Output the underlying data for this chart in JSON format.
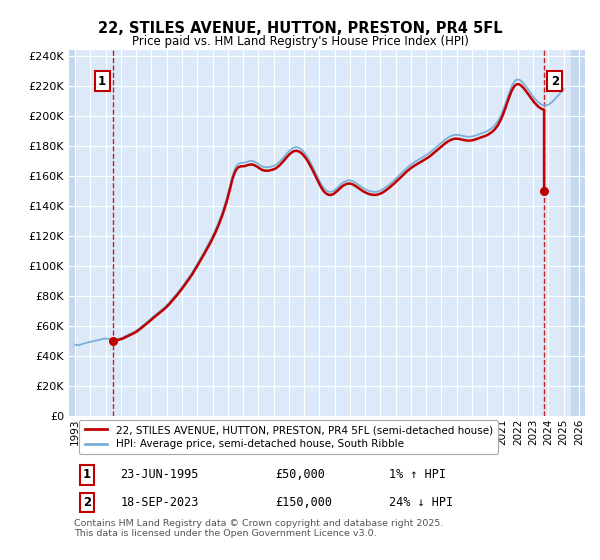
{
  "title": "22, STILES AVENUE, HUTTON, PRESTON, PR4 5FL",
  "subtitle": "Price paid vs. HM Land Registry's House Price Index (HPI)",
  "ylim": [
    0,
    244000
  ],
  "yticks": [
    0,
    20000,
    40000,
    60000,
    80000,
    100000,
    120000,
    140000,
    160000,
    180000,
    200000,
    220000,
    240000
  ],
  "plot_bg_color": "#dce9f8",
  "hatch_color": "#c5d8ee",
  "grid_color": "#ffffff",
  "hpi_line_color": "#7ab0d8",
  "price_line_color": "#c00000",
  "sale1_date": 1995.47,
  "sale1_price": 50000,
  "sale2_date": 2023.72,
  "sale2_price": 150000,
  "legend_label1": "22, STILES AVENUE, HUTTON, PRESTON, PR4 5FL (semi-detached house)",
  "legend_label2": "HPI: Average price, semi-detached house, South Ribble",
  "footnote": "Contains HM Land Registry data © Crown copyright and database right 2025.\nThis data is licensed under the Open Government Licence v3.0.",
  "hpi_data": [
    [
      1993.0,
      47500
    ],
    [
      1993.08,
      47200
    ],
    [
      1993.17,
      47000
    ],
    [
      1993.25,
      47100
    ],
    [
      1993.33,
      47300
    ],
    [
      1993.42,
      47600
    ],
    [
      1993.5,
      47900
    ],
    [
      1993.58,
      48100
    ],
    [
      1993.67,
      48400
    ],
    [
      1993.75,
      48600
    ],
    [
      1993.83,
      48900
    ],
    [
      1993.92,
      49100
    ],
    [
      1994.0,
      49300
    ],
    [
      1994.08,
      49500
    ],
    [
      1994.17,
      49600
    ],
    [
      1994.25,
      49800
    ],
    [
      1994.33,
      50000
    ],
    [
      1994.42,
      50200
    ],
    [
      1994.5,
      50400
    ],
    [
      1994.58,
      50600
    ],
    [
      1994.67,
      50800
    ],
    [
      1994.75,
      51000
    ],
    [
      1994.83,
      51200
    ],
    [
      1994.92,
      51400
    ],
    [
      1995.0,
      51500
    ],
    [
      1995.08,
      51400
    ],
    [
      1995.17,
      51300
    ],
    [
      1995.25,
      51100
    ],
    [
      1995.33,
      51000
    ],
    [
      1995.42,
      50900
    ],
    [
      1995.47,
      50700
    ],
    [
      1995.5,
      50800
    ],
    [
      1995.58,
      50900
    ],
    [
      1995.67,
      51000
    ],
    [
      1995.75,
      51100
    ],
    [
      1995.83,
      51300
    ],
    [
      1995.92,
      51500
    ],
    [
      1996.0,
      51700
    ],
    [
      1996.08,
      52000
    ],
    [
      1996.17,
      52400
    ],
    [
      1996.25,
      52800
    ],
    [
      1996.33,
      53300
    ],
    [
      1996.42,
      53700
    ],
    [
      1996.5,
      54100
    ],
    [
      1996.58,
      54500
    ],
    [
      1996.67,
      54900
    ],
    [
      1996.75,
      55300
    ],
    [
      1996.83,
      55700
    ],
    [
      1996.92,
      56200
    ],
    [
      1997.0,
      56700
    ],
    [
      1997.08,
      57300
    ],
    [
      1997.17,
      57900
    ],
    [
      1997.25,
      58600
    ],
    [
      1997.33,
      59300
    ],
    [
      1997.42,
      60000
    ],
    [
      1997.5,
      60700
    ],
    [
      1997.58,
      61400
    ],
    [
      1997.67,
      62100
    ],
    [
      1997.75,
      62800
    ],
    [
      1997.83,
      63500
    ],
    [
      1997.92,
      64200
    ],
    [
      1998.0,
      65000
    ],
    [
      1998.08,
      65800
    ],
    [
      1998.17,
      66500
    ],
    [
      1998.25,
      67200
    ],
    [
      1998.33,
      67900
    ],
    [
      1998.42,
      68600
    ],
    [
      1998.5,
      69300
    ],
    [
      1998.58,
      70000
    ],
    [
      1998.67,
      70700
    ],
    [
      1998.75,
      71400
    ],
    [
      1998.83,
      72100
    ],
    [
      1998.92,
      72900
    ],
    [
      1999.0,
      73700
    ],
    [
      1999.08,
      74600
    ],
    [
      1999.17,
      75500
    ],
    [
      1999.25,
      76500
    ],
    [
      1999.33,
      77500
    ],
    [
      1999.42,
      78500
    ],
    [
      1999.5,
      79500
    ],
    [
      1999.58,
      80500
    ],
    [
      1999.67,
      81500
    ],
    [
      1999.75,
      82600
    ],
    [
      1999.83,
      83700
    ],
    [
      1999.92,
      84800
    ],
    [
      2000.0,
      85900
    ],
    [
      2000.08,
      87100
    ],
    [
      2000.17,
      88300
    ],
    [
      2000.25,
      89500
    ],
    [
      2000.33,
      90700
    ],
    [
      2000.42,
      91900
    ],
    [
      2000.5,
      93100
    ],
    [
      2000.58,
      94400
    ],
    [
      2000.67,
      95700
    ],
    [
      2000.75,
      97100
    ],
    [
      2000.83,
      98500
    ],
    [
      2000.92,
      99900
    ],
    [
      2001.0,
      101300
    ],
    [
      2001.08,
      102800
    ],
    [
      2001.17,
      104300
    ],
    [
      2001.25,
      105800
    ],
    [
      2001.33,
      107300
    ],
    [
      2001.42,
      108800
    ],
    [
      2001.5,
      110300
    ],
    [
      2001.58,
      111800
    ],
    [
      2001.67,
      113400
    ],
    [
      2001.75,
      115000
    ],
    [
      2001.83,
      116600
    ],
    [
      2001.92,
      118200
    ],
    [
      2002.0,
      119900
    ],
    [
      2002.08,
      121700
    ],
    [
      2002.17,
      123600
    ],
    [
      2002.25,
      125500
    ],
    [
      2002.33,
      127500
    ],
    [
      2002.42,
      129600
    ],
    [
      2002.5,
      131800
    ],
    [
      2002.58,
      134100
    ],
    [
      2002.67,
      136500
    ],
    [
      2002.75,
      139000
    ],
    [
      2002.83,
      141700
    ],
    [
      2002.92,
      144600
    ],
    [
      2003.0,
      147700
    ],
    [
      2003.08,
      151000
    ],
    [
      2003.17,
      154500
    ],
    [
      2003.25,
      158000
    ],
    [
      2003.33,
      161000
    ],
    [
      2003.42,
      163500
    ],
    [
      2003.5,
      165500
    ],
    [
      2003.58,
      167000
    ],
    [
      2003.67,
      168000
    ],
    [
      2003.75,
      168500
    ],
    [
      2003.83,
      168800
    ],
    [
      2003.92,
      168900
    ],
    [
      2004.0,
      168900
    ],
    [
      2004.08,
      169000
    ],
    [
      2004.17,
      169200
    ],
    [
      2004.25,
      169500
    ],
    [
      2004.33,
      169800
    ],
    [
      2004.42,
      170000
    ],
    [
      2004.5,
      170100
    ],
    [
      2004.58,
      170100
    ],
    [
      2004.67,
      169900
    ],
    [
      2004.75,
      169600
    ],
    [
      2004.83,
      169200
    ],
    [
      2004.92,
      168700
    ],
    [
      2005.0,
      168100
    ],
    [
      2005.08,
      167500
    ],
    [
      2005.17,
      167000
    ],
    [
      2005.25,
      166500
    ],
    [
      2005.33,
      166200
    ],
    [
      2005.42,
      166000
    ],
    [
      2005.5,
      165900
    ],
    [
      2005.58,
      165900
    ],
    [
      2005.67,
      166000
    ],
    [
      2005.75,
      166100
    ],
    [
      2005.83,
      166300
    ],
    [
      2005.92,
      166500
    ],
    [
      2006.0,
      166800
    ],
    [
      2006.08,
      167200
    ],
    [
      2006.17,
      167700
    ],
    [
      2006.25,
      168300
    ],
    [
      2006.33,
      169000
    ],
    [
      2006.42,
      169800
    ],
    [
      2006.5,
      170700
    ],
    [
      2006.58,
      171700
    ],
    [
      2006.67,
      172700
    ],
    [
      2006.75,
      173700
    ],
    [
      2006.83,
      174700
    ],
    [
      2006.92,
      175700
    ],
    [
      2007.0,
      176600
    ],
    [
      2007.08,
      177400
    ],
    [
      2007.17,
      178100
    ],
    [
      2007.25,
      178700
    ],
    [
      2007.33,
      179100
    ],
    [
      2007.42,
      179300
    ],
    [
      2007.5,
      179400
    ],
    [
      2007.58,
      179200
    ],
    [
      2007.67,
      178900
    ],
    [
      2007.75,
      178400
    ],
    [
      2007.83,
      177700
    ],
    [
      2007.92,
      176900
    ],
    [
      2008.0,
      175900
    ],
    [
      2008.08,
      174800
    ],
    [
      2008.17,
      173500
    ],
    [
      2008.25,
      172200
    ],
    [
      2008.33,
      170700
    ],
    [
      2008.42,
      169100
    ],
    [
      2008.5,
      167500
    ],
    [
      2008.58,
      165800
    ],
    [
      2008.67,
      164000
    ],
    [
      2008.75,
      162200
    ],
    [
      2008.83,
      160400
    ],
    [
      2008.92,
      158600
    ],
    [
      2009.0,
      156900
    ],
    [
      2009.08,
      155300
    ],
    [
      2009.17,
      153800
    ],
    [
      2009.25,
      152500
    ],
    [
      2009.33,
      151500
    ],
    [
      2009.42,
      150700
    ],
    [
      2009.5,
      150100
    ],
    [
      2009.58,
      149700
    ],
    [
      2009.67,
      149500
    ],
    [
      2009.75,
      149500
    ],
    [
      2009.83,
      149700
    ],
    [
      2009.92,
      150100
    ],
    [
      2010.0,
      150700
    ],
    [
      2010.08,
      151400
    ],
    [
      2010.17,
      152200
    ],
    [
      2010.25,
      153000
    ],
    [
      2010.33,
      153800
    ],
    [
      2010.42,
      154600
    ],
    [
      2010.5,
      155300
    ],
    [
      2010.58,
      155900
    ],
    [
      2010.67,
      156400
    ],
    [
      2010.75,
      156800
    ],
    [
      2010.83,
      157100
    ],
    [
      2010.92,
      157200
    ],
    [
      2011.0,
      157200
    ],
    [
      2011.08,
      157000
    ],
    [
      2011.17,
      156700
    ],
    [
      2011.25,
      156300
    ],
    [
      2011.33,
      155800
    ],
    [
      2011.42,
      155200
    ],
    [
      2011.5,
      154600
    ],
    [
      2011.58,
      154000
    ],
    [
      2011.67,
      153400
    ],
    [
      2011.75,
      152800
    ],
    [
      2011.83,
      152200
    ],
    [
      2011.92,
      151700
    ],
    [
      2012.0,
      151200
    ],
    [
      2012.08,
      150800
    ],
    [
      2012.17,
      150400
    ],
    [
      2012.25,
      150100
    ],
    [
      2012.33,
      149900
    ],
    [
      2012.42,
      149700
    ],
    [
      2012.5,
      149600
    ],
    [
      2012.58,
      149500
    ],
    [
      2012.67,
      149500
    ],
    [
      2012.75,
      149600
    ],
    [
      2012.83,
      149800
    ],
    [
      2012.92,
      150100
    ],
    [
      2013.0,
      150400
    ],
    [
      2013.08,
      150800
    ],
    [
      2013.17,
      151300
    ],
    [
      2013.25,
      151800
    ],
    [
      2013.33,
      152400
    ],
    [
      2013.42,
      153000
    ],
    [
      2013.5,
      153700
    ],
    [
      2013.58,
      154400
    ],
    [
      2013.67,
      155100
    ],
    [
      2013.75,
      155800
    ],
    [
      2013.83,
      156600
    ],
    [
      2013.92,
      157400
    ],
    [
      2014.0,
      158200
    ],
    [
      2014.08,
      159000
    ],
    [
      2014.17,
      159900
    ],
    [
      2014.25,
      160700
    ],
    [
      2014.33,
      161600
    ],
    [
      2014.42,
      162400
    ],
    [
      2014.5,
      163200
    ],
    [
      2014.58,
      164000
    ],
    [
      2014.67,
      164800
    ],
    [
      2014.75,
      165600
    ],
    [
      2014.83,
      166300
    ],
    [
      2014.92,
      167000
    ],
    [
      2015.0,
      167700
    ],
    [
      2015.08,
      168300
    ],
    [
      2015.17,
      168900
    ],
    [
      2015.25,
      169500
    ],
    [
      2015.33,
      170000
    ],
    [
      2015.42,
      170500
    ],
    [
      2015.5,
      171000
    ],
    [
      2015.58,
      171500
    ],
    [
      2015.67,
      172000
    ],
    [
      2015.75,
      172500
    ],
    [
      2015.83,
      173000
    ],
    [
      2015.92,
      173500
    ],
    [
      2016.0,
      174000
    ],
    [
      2016.08,
      174600
    ],
    [
      2016.17,
      175200
    ],
    [
      2016.25,
      175800
    ],
    [
      2016.33,
      176500
    ],
    [
      2016.42,
      177200
    ],
    [
      2016.5,
      177900
    ],
    [
      2016.58,
      178600
    ],
    [
      2016.67,
      179400
    ],
    [
      2016.75,
      180100
    ],
    [
      2016.83,
      180900
    ],
    [
      2016.92,
      181600
    ],
    [
      2017.0,
      182400
    ],
    [
      2017.08,
      183100
    ],
    [
      2017.17,
      183800
    ],
    [
      2017.25,
      184500
    ],
    [
      2017.33,
      185100
    ],
    [
      2017.42,
      185700
    ],
    [
      2017.5,
      186200
    ],
    [
      2017.58,
      186600
    ],
    [
      2017.67,
      187000
    ],
    [
      2017.75,
      187300
    ],
    [
      2017.83,
      187500
    ],
    [
      2017.92,
      187600
    ],
    [
      2018.0,
      187600
    ],
    [
      2018.08,
      187500
    ],
    [
      2018.17,
      187400
    ],
    [
      2018.25,
      187200
    ],
    [
      2018.33,
      187000
    ],
    [
      2018.42,
      186800
    ],
    [
      2018.5,
      186600
    ],
    [
      2018.58,
      186500
    ],
    [
      2018.67,
      186400
    ],
    [
      2018.75,
      186300
    ],
    [
      2018.83,
      186300
    ],
    [
      2018.92,
      186400
    ],
    [
      2019.0,
      186500
    ],
    [
      2019.08,
      186700
    ],
    [
      2019.17,
      186900
    ],
    [
      2019.25,
      187200
    ],
    [
      2019.33,
      187500
    ],
    [
      2019.42,
      187800
    ],
    [
      2019.5,
      188100
    ],
    [
      2019.58,
      188400
    ],
    [
      2019.67,
      188700
    ],
    [
      2019.75,
      189000
    ],
    [
      2019.83,
      189300
    ],
    [
      2019.92,
      189700
    ],
    [
      2020.0,
      190100
    ],
    [
      2020.08,
      190600
    ],
    [
      2020.17,
      191100
    ],
    [
      2020.25,
      191700
    ],
    [
      2020.33,
      192400
    ],
    [
      2020.42,
      193200
    ],
    [
      2020.5,
      194100
    ],
    [
      2020.58,
      195200
    ],
    [
      2020.67,
      196400
    ],
    [
      2020.75,
      197800
    ],
    [
      2020.83,
      199400
    ],
    [
      2020.92,
      201200
    ],
    [
      2021.0,
      203200
    ],
    [
      2021.08,
      205400
    ],
    [
      2021.17,
      207800
    ],
    [
      2021.25,
      210300
    ],
    [
      2021.33,
      212800
    ],
    [
      2021.42,
      215200
    ],
    [
      2021.5,
      217500
    ],
    [
      2021.58,
      219600
    ],
    [
      2021.67,
      221400
    ],
    [
      2021.75,
      222800
    ],
    [
      2021.83,
      223800
    ],
    [
      2021.92,
      224400
    ],
    [
      2022.0,
      224600
    ],
    [
      2022.08,
      224400
    ],
    [
      2022.17,
      224000
    ],
    [
      2022.25,
      223300
    ],
    [
      2022.33,
      222400
    ],
    [
      2022.42,
      221400
    ],
    [
      2022.5,
      220300
    ],
    [
      2022.58,
      219200
    ],
    [
      2022.67,
      218000
    ],
    [
      2022.75,
      216800
    ],
    [
      2022.83,
      215600
    ],
    [
      2022.92,
      214400
    ],
    [
      2023.0,
      213200
    ],
    [
      2023.08,
      212100
    ],
    [
      2023.17,
      211100
    ],
    [
      2023.25,
      210200
    ],
    [
      2023.33,
      209400
    ],
    [
      2023.42,
      208700
    ],
    [
      2023.5,
      208100
    ],
    [
      2023.58,
      207700
    ],
    [
      2023.67,
      207400
    ],
    [
      2023.72,
      207200
    ],
    [
      2023.75,
      207200
    ],
    [
      2023.83,
      207300
    ],
    [
      2023.92,
      207500
    ],
    [
      2024.0,
      207800
    ],
    [
      2024.08,
      208300
    ],
    [
      2024.17,
      208900
    ],
    [
      2024.25,
      209600
    ],
    [
      2024.33,
      210400
    ],
    [
      2024.42,
      211300
    ],
    [
      2024.5,
      212200
    ],
    [
      2024.58,
      213200
    ],
    [
      2024.67,
      214200
    ],
    [
      2024.75,
      215200
    ],
    [
      2024.83,
      216200
    ],
    [
      2024.92,
      217200
    ],
    [
      2025.0,
      218200
    ]
  ],
  "xtick_years": [
    1993,
    1994,
    1995,
    1996,
    1997,
    1998,
    1999,
    2000,
    2001,
    2002,
    2003,
    2004,
    2005,
    2006,
    2007,
    2008,
    2009,
    2010,
    2011,
    2012,
    2013,
    2014,
    2015,
    2016,
    2017,
    2018,
    2019,
    2020,
    2021,
    2022,
    2023,
    2024,
    2025,
    2026
  ]
}
